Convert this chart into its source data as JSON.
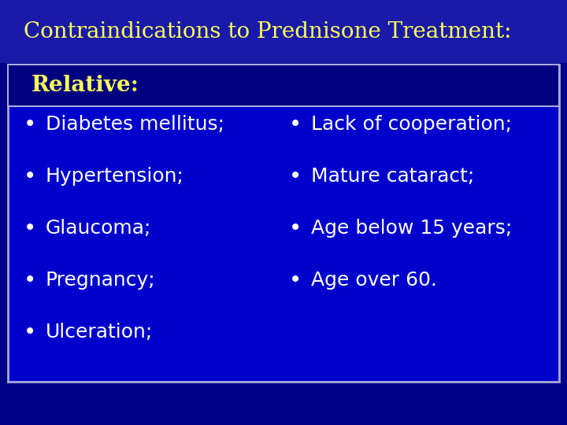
{
  "title": "Contraindications to Prednisone Treatment:",
  "title_color": "#FFFF55",
  "title_fontsize": 20,
  "title_fontweight": "normal",
  "subtitle": "Relative:",
  "subtitle_color": "#FFFF55",
  "subtitle_fontsize": 20,
  "subtitle_fontweight": "bold",
  "bg_color": "#000088",
  "box_bg_color": "#0000cc",
  "subtitle_bg_color": "#000080",
  "box_border_color": "#aaaadd",
  "text_color": "#ffffff",
  "left_items": [
    "Diabetes mellitus;",
    "Hypertension;",
    "Glaucoma;",
    "Pregnancy;",
    "Ulceration;"
  ],
  "right_items": [
    "Lack of cooperation;",
    "Mature cataract;",
    "Age below 15 years;",
    "Age over 60."
  ],
  "item_fontsize": 18,
  "figsize": [
    7.2,
    5.4
  ],
  "dpi": 100
}
